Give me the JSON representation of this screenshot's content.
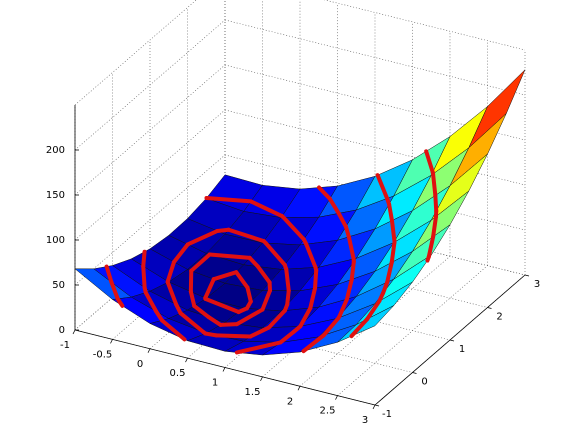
{
  "chart_data": {
    "type": "surface",
    "x": [
      -1,
      -0.5,
      0,
      0.5,
      1,
      1.5,
      2,
      2.5,
      3
    ],
    "y": [
      -1,
      -0.5,
      0,
      0.5,
      1,
      1.5,
      2,
      2.5,
      3
    ],
    "z": [
      [
        68,
        49.9,
        35.5,
        24.9,
        18,
        14.9,
        15.5,
        19.9,
        28
      ],
      [
        44.3,
        28.9,
        17.4,
        9.6,
        5.5,
        5.2,
        8.6,
        15.8,
        26.8
      ],
      [
        28,
        15.5,
        6.8,
        1.8,
        0.5,
        3,
        9.3,
        19.3,
        33
      ],
      [
        19.3,
        9.6,
        3.6,
        1.4,
        3,
        8.3,
        17.4,
        30.2,
        46.8
      ],
      [
        18,
        11.1,
        8,
        8.6,
        13,
        21.1,
        33,
        48.6,
        68
      ],
      [
        24.3,
        20.2,
        19.9,
        23.3,
        30.5,
        41.4,
        56.1,
        74.6,
        96.8
      ],
      [
        38,
        36.8,
        39.3,
        45.5,
        55.5,
        69.3,
        86.8,
        108,
        133
      ],
      [
        59.3,
        60.8,
        66.1,
        75.2,
        88,
        104.6,
        124.9,
        148.9,
        176.8
      ],
      [
        88,
        92.4,
        100.5,
        112.4,
        128,
        147.4,
        170.5,
        197.4,
        228
      ]
    ],
    "xlim": [
      -1,
      3
    ],
    "ylim": [
      -1,
      3
    ],
    "zlim": [
      0,
      250
    ],
    "xticks": [
      -1,
      -0.5,
      0,
      0.5,
      1,
      1.5,
      2,
      2.5,
      3
    ],
    "yticks": [
      -1,
      0,
      1,
      2,
      3
    ],
    "zticks": [
      0,
      50,
      100,
      150,
      200
    ],
    "grid": true,
    "colormap": "jet",
    "contour_levels": [
      2,
      5,
      10,
      20,
      40,
      70,
      110
    ],
    "contour_color": "#e01010"
  }
}
